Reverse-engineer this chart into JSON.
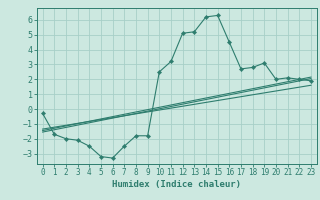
{
  "xlabel": "Humidex (Indice chaleur)",
  "background_color": "#cce8e0",
  "grid_color": "#a8cfc8",
  "line_color": "#2e7d6e",
  "xlim": [
    -0.5,
    23.5
  ],
  "ylim": [
    -3.7,
    6.8
  ],
  "xticks": [
    0,
    1,
    2,
    3,
    4,
    5,
    6,
    7,
    8,
    9,
    10,
    11,
    12,
    13,
    14,
    15,
    16,
    17,
    18,
    19,
    20,
    21,
    22,
    23
  ],
  "yticks": [
    -3,
    -2,
    -1,
    0,
    1,
    2,
    3,
    4,
    5,
    6
  ],
  "main_series": [
    [
      0,
      -0.3
    ],
    [
      1,
      -1.7
    ],
    [
      2,
      -2.0
    ],
    [
      3,
      -2.1
    ],
    [
      4,
      -2.5
    ],
    [
      5,
      -3.2
    ],
    [
      6,
      -3.3
    ],
    [
      7,
      -2.5
    ],
    [
      8,
      -1.8
    ],
    [
      9,
      -1.8
    ],
    [
      10,
      2.5
    ],
    [
      11,
      3.2
    ],
    [
      12,
      5.1
    ],
    [
      13,
      5.2
    ],
    [
      14,
      6.2
    ],
    [
      15,
      6.3
    ],
    [
      16,
      4.5
    ],
    [
      17,
      2.7
    ],
    [
      18,
      2.8
    ],
    [
      19,
      3.1
    ],
    [
      20,
      2.0
    ],
    [
      21,
      2.1
    ],
    [
      22,
      2.0
    ],
    [
      23,
      1.9
    ]
  ],
  "linear_series1": [
    [
      0,
      -1.55
    ],
    [
      23,
      2.05
    ]
  ],
  "linear_series2": [
    [
      0,
      -1.45
    ],
    [
      23,
      2.15
    ]
  ],
  "linear_series3": [
    [
      0,
      -1.35
    ],
    [
      23,
      1.6
    ]
  ]
}
